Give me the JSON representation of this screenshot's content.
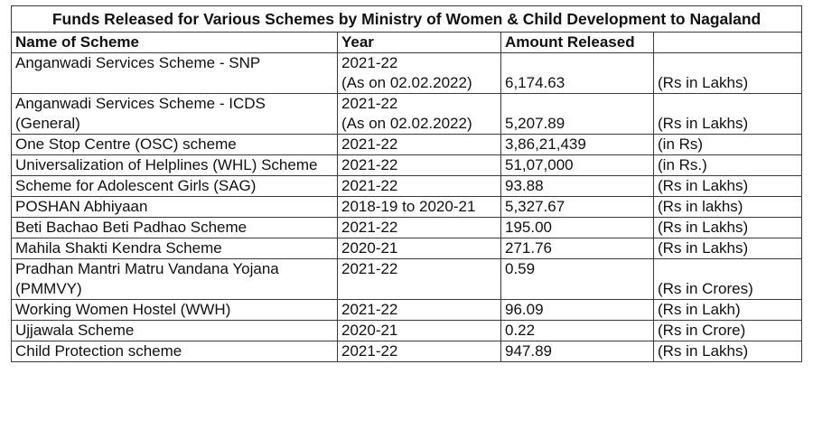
{
  "table": {
    "title": "Funds Released for Various Schemes by Ministry of Women & Child Development to Nagaland",
    "headers": {
      "scheme": "Name of Scheme",
      "year": "Year",
      "amount": "Amount Released",
      "unit": ""
    },
    "rows": [
      {
        "scheme": "Anganwadi Services Scheme - SNP",
        "scheme2": "",
        "year": "2021-22",
        "year2": "(As on 02.02.2022)",
        "amount": "6,174.63",
        "unit": "(Rs in Lakhs)"
      },
      {
        "scheme": "Anganwadi Services Scheme - ICDS",
        "scheme2": "(General)",
        "year": "2021-22",
        "year2": "(As on 02.02.2022)",
        "amount": "5,207.89",
        "unit": "(Rs in Lakhs)"
      },
      {
        "scheme": "One Stop Centre (OSC) scheme",
        "year": "2021-22",
        "amount": "3,86,21,439",
        "unit": "(in Rs)"
      },
      {
        "scheme": "Universalization of Helplines (WHL) Scheme",
        "year": "2021-22",
        "amount": "51,07,000",
        "unit": "(in Rs.)"
      },
      {
        "scheme": "Scheme for Adolescent Girls (SAG)",
        "year": "2021-22",
        "amount": "93.88",
        "unit": "(Rs in Lakhs)"
      },
      {
        "scheme": "POSHAN Abhiyaan",
        "year": "2018-19 to 2020-21",
        "amount": "5,327.67",
        "unit": "(Rs in lakhs)"
      },
      {
        "scheme": "Beti Bachao Beti Padhao Scheme",
        "year": "2021-22",
        "amount": "195.00",
        "unit": "(Rs in Lakhs)"
      },
      {
        "scheme": "Mahila Shakti Kendra Scheme",
        "year": "2020-21",
        "amount": "271.76",
        "unit": "(Rs in Lakhs)"
      },
      {
        "scheme": "Pradhan Mantri Matru Vandana Yojana",
        "scheme2": "(PMMVY)",
        "year": "2021-22",
        "amount": "0.59",
        "unit": "(Rs in Crores)"
      },
      {
        "scheme": "Working Women Hostel (WWH)",
        "year": "2021-22",
        "amount": "96.09",
        "unit": "(Rs in Lakh)"
      },
      {
        "scheme": "Ujjawala Scheme",
        "year": "2020-21",
        "amount": "0.22",
        "unit": "(Rs in Crore)"
      },
      {
        "scheme": "Child Protection scheme",
        "year": "2021-22",
        "amount": "947.89",
        "unit": "(Rs in Lakhs)"
      }
    ]
  }
}
